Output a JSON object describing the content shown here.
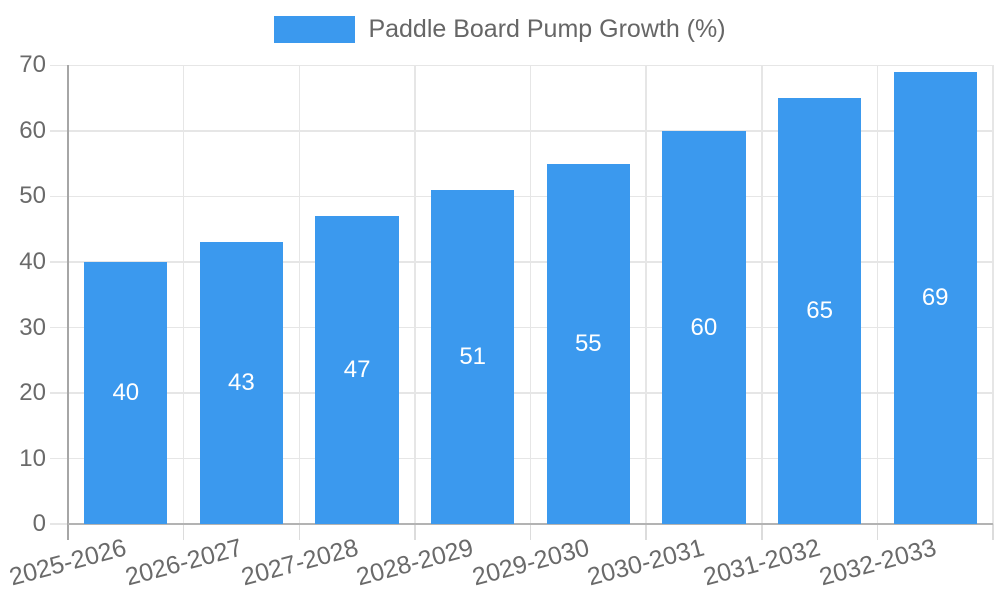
{
  "chart_data": {
    "type": "bar",
    "categories": [
      "2025-2026",
      "2026-2027",
      "2027-2028",
      "2028-2029",
      "2029-2030",
      "2030-2031",
      "2031-2032",
      "2032-2033"
    ],
    "series": [
      {
        "name": "Paddle Board Pump Growth (%)",
        "values": [
          40,
          43,
          47,
          51,
          55,
          60,
          65,
          69
        ]
      }
    ],
    "bar_value_labels": [
      "40",
      "43",
      "47",
      "51",
      "55",
      "60",
      "65",
      "69"
    ],
    "ylabel": "",
    "xlabel": "",
    "ylim": [
      0,
      70
    ],
    "ytick_step": 10,
    "legend_position": "top",
    "grid": true,
    "colors": {
      "bar": "#3b99ee",
      "grid": "#e6e6e6",
      "tick": "#dcdcdc",
      "y_axis": "#a6a6a6",
      "x_axis": "#b3b3b3",
      "tick_text": "#6a6a6a",
      "legend_text": "#666666",
      "value_label": "#ffffff"
    }
  }
}
